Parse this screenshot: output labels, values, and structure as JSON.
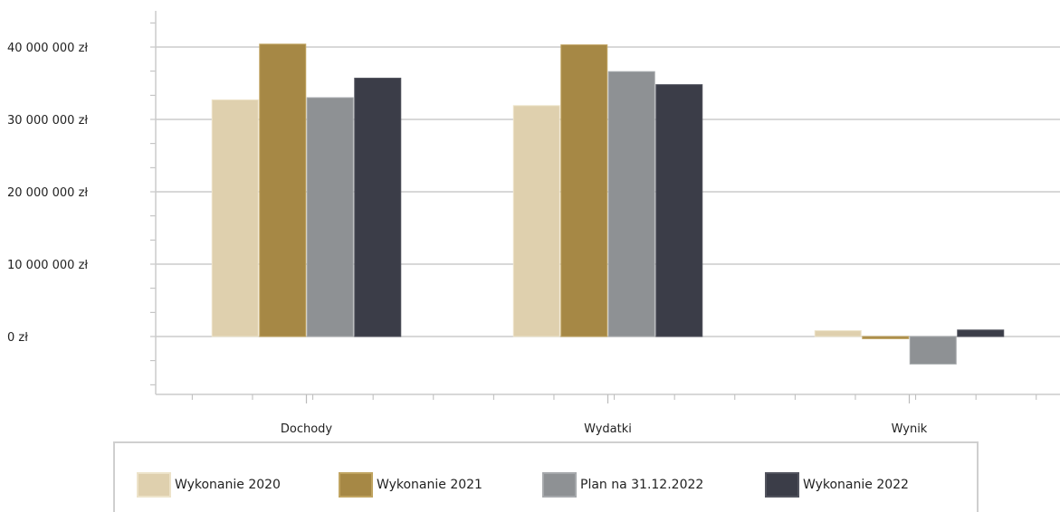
{
  "chart_data": {
    "type": "bar",
    "categories": [
      "Dochody",
      "Wydatki",
      "Wynik"
    ],
    "series": [
      {
        "name": "Wykonanie 2020",
        "color": "#dfd0ae",
        "border": "#ede3c9",
        "values": [
          32700000,
          31900000,
          800000
        ]
      },
      {
        "name": "Wykonanie 2021",
        "color": "#a68845",
        "border": "#c0a461",
        "values": [
          40400000,
          40300000,
          -300000
        ]
      },
      {
        "name": "Plan na 31.12.2022",
        "color": "#8e9194",
        "border": "#a6a9ac",
        "values": [
          33000000,
          36600000,
          -3800000
        ]
      },
      {
        "name": "Wykonanie 2022",
        "color": "#3b3d48",
        "border": "#52545e",
        "values": [
          35700000,
          34800000,
          900000
        ]
      }
    ],
    "y_ticks": [
      {
        "value": 0,
        "label": "0 zł"
      },
      {
        "value": 10000000,
        "label": "10 000 000 zł"
      },
      {
        "value": 20000000,
        "label": "20 000 000 zł"
      },
      {
        "value": 30000000,
        "label": "30 000 000 zł"
      },
      {
        "value": 40000000,
        "label": "40 000 000 zł"
      }
    ],
    "ylim": [
      -8000000,
      45000000
    ],
    "grid": true,
    "legend_position": "bottom",
    "title": "",
    "xlabel": "",
    "ylabel": ""
  }
}
